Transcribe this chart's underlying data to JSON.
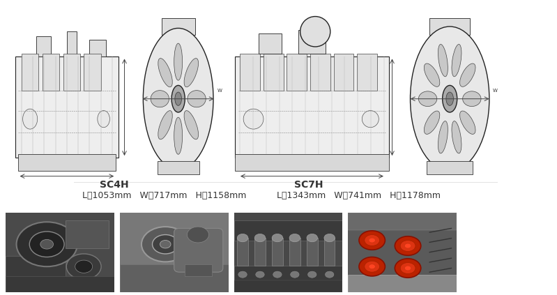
{
  "background_color": "#ffffff",
  "sc4h_label": "SC4H",
  "sc4h_dims": "L：1053mm   W：717mm   H：1158mm",
  "sc7h_label": "SC7H",
  "sc7h_dims": "L：1343mm   W：741mm   H：1178mm",
  "label_fontsize": 10,
  "dims_fontsize": 9,
  "text_color": "#333333"
}
